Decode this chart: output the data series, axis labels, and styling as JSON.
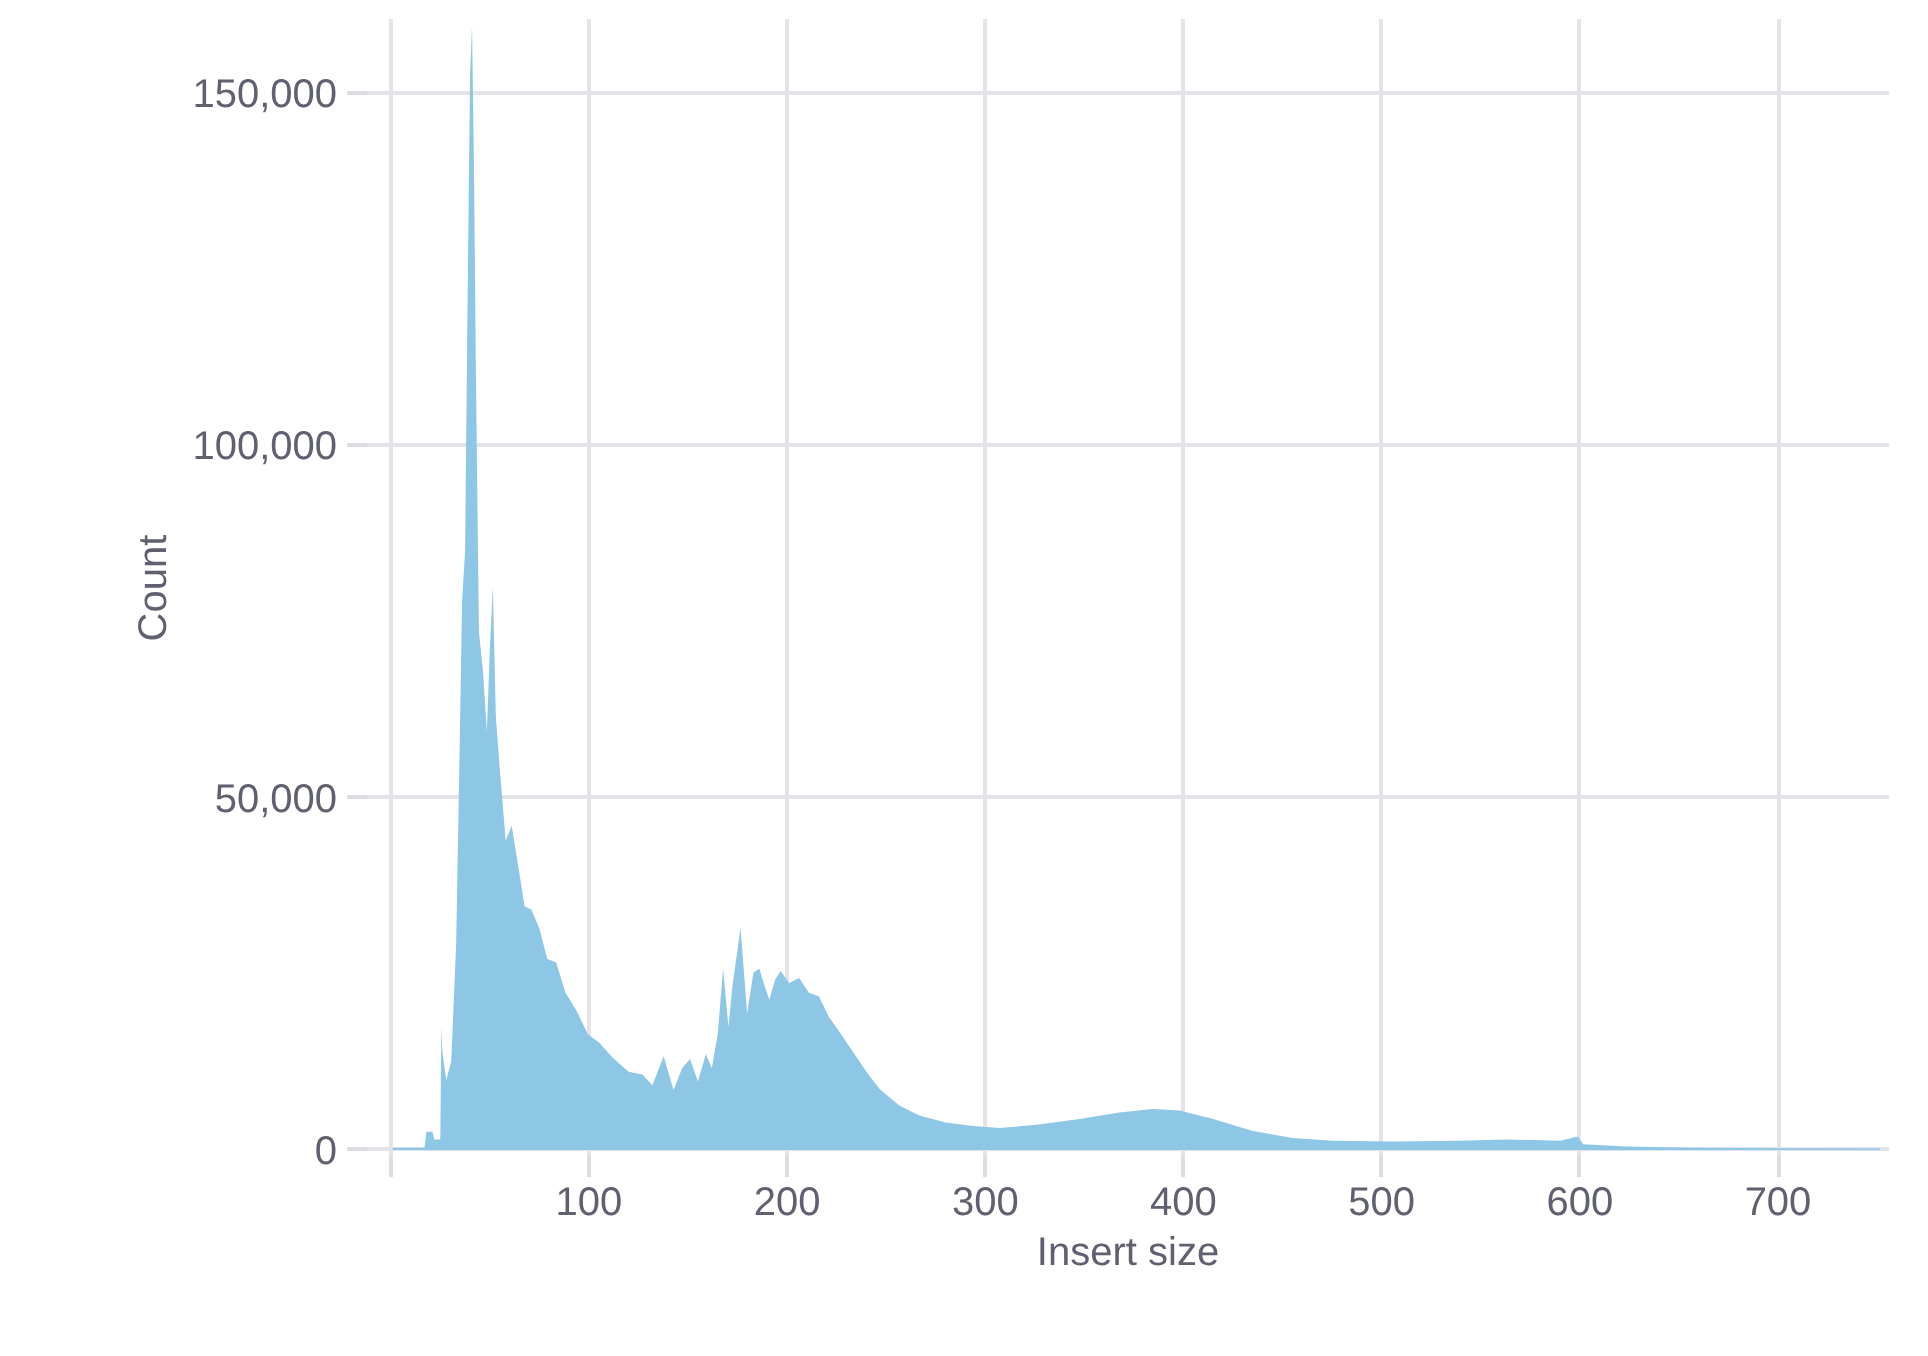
{
  "chart_data": {
    "type": "area",
    "xlabel": "Insert size",
    "ylabel": "Count",
    "xlim": [
      -12,
      756
    ],
    "ylim": [
      -1000,
      160500
    ],
    "xticks": [
      {
        "value": 0,
        "label": null
      },
      100,
      200,
      300,
      400,
      500,
      600,
      700
    ],
    "yticks": [
      {
        "value": 0,
        "label": "0"
      },
      {
        "value": 50000,
        "label": "50,000"
      },
      {
        "value": 100000,
        "label": "100,000"
      },
      {
        "value": 150000,
        "label": "150,000"
      }
    ],
    "grid": true,
    "series": [
      {
        "color": "#8ec6e6",
        "x": [
          1,
          17,
          18,
          21,
          22,
          25,
          25.5,
          26,
          28,
          30.5,
          33,
          34.5,
          36,
          37.5,
          38.5,
          40,
          41,
          42,
          43,
          44.5,
          46.5,
          48.5,
          50,
          51.5,
          53,
          55,
          58,
          61,
          63.5,
          67.5,
          71,
          75,
          79,
          83.5,
          88,
          94,
          99.5,
          105,
          112,
          120,
          127,
          132,
          137.7,
          142.7,
          147,
          151,
          155,
          159,
          162,
          165,
          167.7,
          170.4,
          172.4,
          176.5,
          179.8,
          183,
          186,
          188.6,
          191,
          194,
          196.7,
          201,
          206,
          211,
          216,
          221,
          226,
          233,
          240,
          246.5,
          256.6,
          266.7,
          280,
          293.6,
          307,
          327,
          347.5,
          367.7,
          384.5,
          398,
          415,
          435,
          455,
          475.5,
          505.8,
          539,
          563,
          590,
          599,
          601.7,
          623.6,
          657,
          751.5
        ],
        "values": [
          300,
          300,
          2600,
          2600,
          1500,
          1500,
          17400,
          14000,
          9900,
          12600,
          29300,
          53000,
          78000,
          85000,
          113800,
          152600,
          159500,
          139000,
          109000,
          73500,
          68000,
          59400,
          71200,
          80000,
          61600,
          54000,
          43900,
          46000,
          41700,
          34600,
          34100,
          31400,
          27100,
          26600,
          22400,
          19600,
          16400,
          15300,
          13100,
          11100,
          10700,
          9200,
          13300,
          8500,
          11600,
          12900,
          9700,
          13600,
          11600,
          16500,
          25700,
          17400,
          23300,
          31500,
          19400,
          25200,
          25700,
          23300,
          21300,
          24200,
          25400,
          23700,
          24400,
          22300,
          21800,
          18900,
          16900,
          14000,
          11100,
          8700,
          6300,
          4900,
          3900,
          3400,
          3100,
          3600,
          4400,
          5300,
          5800,
          5600,
          4400,
          2700,
          1700,
          1300,
          1200,
          1300,
          1500,
          1300,
          1900,
          800,
          500,
          300,
          200
        ]
      }
    ]
  }
}
